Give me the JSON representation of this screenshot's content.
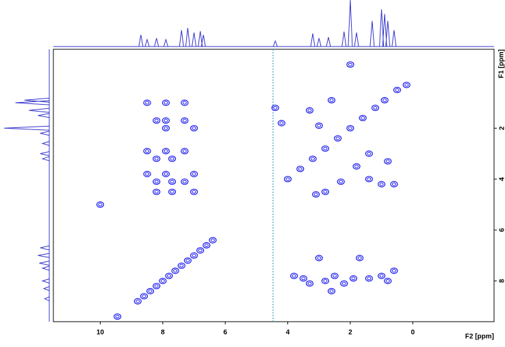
{
  "chart_data": {
    "type": "scatter",
    "x_label": "F2 [ppm]",
    "y_label": "F1 [ppm]",
    "xlim": [
      11.5,
      -2.6
    ],
    "ylim": [
      9.6,
      -1.1
    ],
    "xticks": [
      10,
      8,
      6,
      4,
      2,
      0
    ],
    "yticks": [
      2,
      4,
      6,
      8
    ],
    "color": "#1a1aee",
    "x": [
      8.8,
      8.6,
      8.4,
      8.2,
      8.0,
      7.8,
      7.6,
      7.4,
      7.2,
      7.0,
      6.8,
      6.6,
      6.4,
      4.0,
      3.6,
      3.2,
      2.8,
      2.4,
      2.0,
      1.6,
      1.2,
      0.9,
      0.5,
      8.5,
      8.5,
      8.5,
      8.2,
      8.2,
      8.2,
      8.2,
      7.9,
      7.9,
      7.9,
      7.9,
      7.9,
      7.7,
      7.7,
      7.7,
      7.3,
      7.3,
      7.3,
      7.3,
      7.0,
      7.0,
      7.0,
      4.4,
      4.2,
      3.3,
      3.0,
      2.6,
      1.4,
      1.8,
      1.4,
      0.8,
      1.0,
      2.3,
      2.8,
      3.1,
      0.6,
      2.0,
      0.2,
      3.8,
      3.5,
      3.0,
      2.8,
      2.5,
      2.2,
      1.9,
      1.7,
      1.4,
      1.0,
      0.8,
      0.6,
      3.3,
      2.6,
      9.45,
      10.0
    ],
    "values": [
      8.8,
      8.6,
      8.4,
      8.2,
      8.0,
      7.8,
      7.6,
      7.4,
      7.2,
      7.0,
      6.8,
      6.6,
      6.4,
      4.0,
      3.6,
      3.2,
      2.8,
      2.4,
      2.0,
      1.6,
      1.2,
      0.9,
      0.5,
      1.0,
      2.9,
      3.8,
      1.7,
      3.2,
      4.1,
      4.5,
      1.0,
      1.7,
      2.0,
      2.9,
      3.8,
      3.2,
      4.1,
      4.5,
      1.0,
      1.7,
      2.9,
      4.1,
      2.0,
      3.8,
      4.5,
      1.2,
      1.8,
      1.3,
      1.9,
      0.9,
      3.0,
      3.5,
      4.0,
      3.3,
      4.2,
      4.1,
      4.5,
      4.6,
      4.2,
      -0.5,
      0.3,
      7.8,
      7.9,
      7.1,
      8.0,
      7.8,
      8.1,
      7.9,
      7.1,
      7.9,
      7.8,
      8.0,
      7.6,
      8.1,
      8.4,
      9.4,
      5.0
    ],
    "top_projection": {
      "x": [
        8.7,
        8.5,
        8.2,
        7.9,
        7.4,
        7.2,
        7.0,
        6.8,
        6.7,
        4.4,
        3.2,
        3.0,
        2.7,
        2.2,
        2.0,
        1.8,
        1.3,
        1.0,
        0.9,
        0.8,
        0.6
      ],
      "values": [
        25,
        15,
        18,
        15,
        35,
        40,
        30,
        33,
        25,
        12,
        28,
        18,
        20,
        32,
        100,
        30,
        55,
        80,
        70,
        55,
        35
      ]
    },
    "left_projection": {
      "y": [
        0.9,
        1.0,
        1.3,
        1.5,
        2.0,
        2.2,
        2.6,
        3.0,
        3.2,
        6.7,
        7.0,
        7.3,
        7.5,
        8.0,
        8.3,
        8.7
      ],
      "values": [
        55,
        75,
        45,
        25,
        100,
        20,
        15,
        20,
        15,
        20,
        25,
        22,
        15,
        15,
        12,
        10
      ]
    }
  }
}
